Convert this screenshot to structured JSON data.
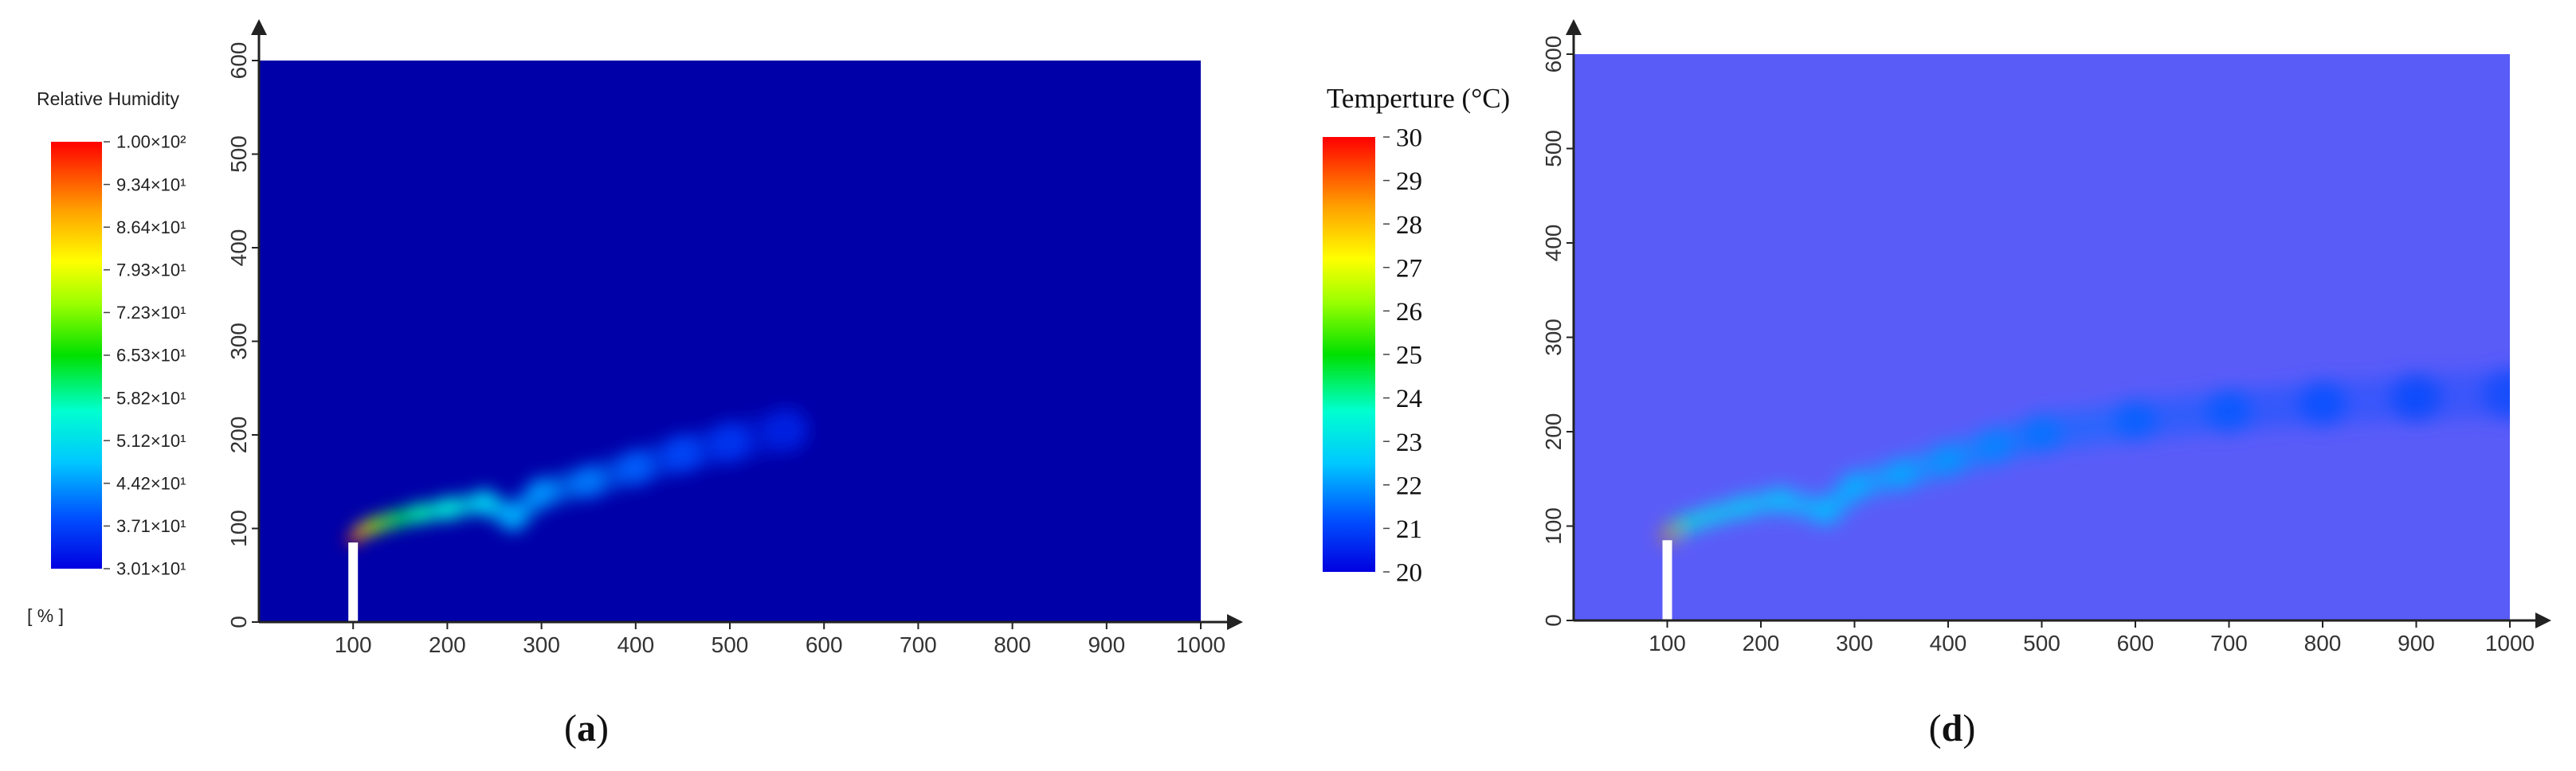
{
  "chart_data": [
    {
      "type": "heatmap",
      "panel_label_prefix": "(",
      "panel_label_letter": "a",
      "panel_label_suffix": ")",
      "colorbar": {
        "title": "Relative Humidity",
        "unit": "[ % ]",
        "labels": [
          "1.00×10²",
          "9.34×10¹",
          "8.64×10¹",
          "7.93×10¹",
          "7.23×10¹",
          "6.53×10¹",
          "5.82×10¹",
          "5.12×10¹",
          "4.42×10¹",
          "3.71×10¹",
          "3.01×10¹"
        ],
        "min": 30.1,
        "max": 100
      },
      "x_ticks": [
        "100",
        "200",
        "300",
        "400",
        "500",
        "600",
        "700",
        "800",
        "900",
        "1000"
      ],
      "y_ticks": [
        "0",
        "100",
        "200",
        "300",
        "400",
        "500",
        "600"
      ],
      "xlim": [
        0,
        1000
      ],
      "ylim": [
        0,
        600
      ],
      "background_color": "#0000a8",
      "chimney": {
        "x": 100,
        "top": 85
      },
      "plume_points": [
        {
          "x": 100,
          "y": 88,
          "v": 100
        },
        {
          "x": 110,
          "y": 98,
          "v": 86
        },
        {
          "x": 125,
          "y": 104,
          "v": 72
        },
        {
          "x": 145,
          "y": 110,
          "v": 62
        },
        {
          "x": 170,
          "y": 116,
          "v": 58
        },
        {
          "x": 200,
          "y": 121,
          "v": 55
        },
        {
          "x": 240,
          "y": 128,
          "v": 50
        },
        {
          "x": 270,
          "y": 112,
          "v": 46
        },
        {
          "x": 300,
          "y": 138,
          "v": 44
        },
        {
          "x": 350,
          "y": 150,
          "v": 42
        },
        {
          "x": 400,
          "y": 165,
          "v": 40
        },
        {
          "x": 450,
          "y": 180,
          "v": 38
        },
        {
          "x": 500,
          "y": 192,
          "v": 36
        },
        {
          "x": 560,
          "y": 205,
          "v": 34
        }
      ]
    },
    {
      "type": "heatmap",
      "panel_label_prefix": "(",
      "panel_label_letter": "d",
      "panel_label_suffix": ")",
      "colorbar": {
        "title": "Temperture (°C)",
        "unit": "",
        "labels": [
          "30",
          "29",
          "28",
          "27",
          "26",
          "25",
          "24",
          "23",
          "22",
          "21",
          "20"
        ],
        "min": 20,
        "max": 30
      },
      "x_ticks": [
        "100",
        "200",
        "300",
        "400",
        "500",
        "600",
        "700",
        "800",
        "900",
        "1000"
      ],
      "y_ticks": [
        "0",
        "100",
        "200",
        "300",
        "400",
        "500",
        "600"
      ],
      "xlim": [
        0,
        1000
      ],
      "ylim": [
        0,
        600
      ],
      "background_color": "#5a5cf8",
      "chimney": {
        "x": 100,
        "top": 85
      },
      "plume_points": [
        {
          "x": 100,
          "y": 88,
          "v": 29
        },
        {
          "x": 110,
          "y": 98,
          "v": 25
        },
        {
          "x": 125,
          "y": 104,
          "v": 23.5
        },
        {
          "x": 150,
          "y": 112,
          "v": 23
        },
        {
          "x": 180,
          "y": 120,
          "v": 22.8
        },
        {
          "x": 220,
          "y": 128,
          "v": 22.6
        },
        {
          "x": 270,
          "y": 115,
          "v": 22.4
        },
        {
          "x": 300,
          "y": 142,
          "v": 22.3
        },
        {
          "x": 350,
          "y": 155,
          "v": 22.2
        },
        {
          "x": 400,
          "y": 170,
          "v": 22
        },
        {
          "x": 450,
          "y": 185,
          "v": 21.8
        },
        {
          "x": 500,
          "y": 198,
          "v": 21.6
        },
        {
          "x": 600,
          "y": 212,
          "v": 21.4
        },
        {
          "x": 700,
          "y": 222,
          "v": 21.3
        },
        {
          "x": 800,
          "y": 230,
          "v": 21.2
        },
        {
          "x": 900,
          "y": 236,
          "v": 21.1
        },
        {
          "x": 1000,
          "y": 240,
          "v": 21.05
        }
      ]
    }
  ]
}
